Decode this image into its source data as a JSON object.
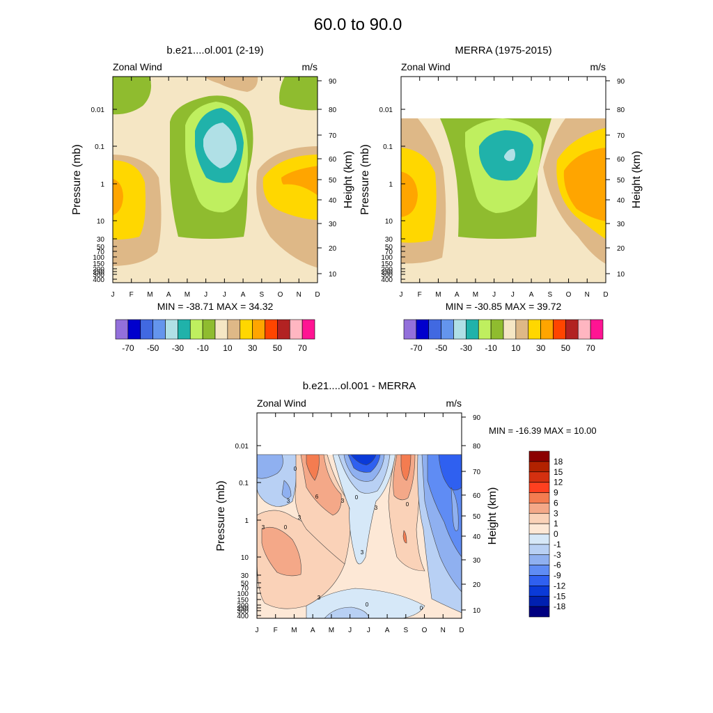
{
  "figure_title": "60.0 to  90.0",
  "months": [
    "J",
    "F",
    "M",
    "A",
    "M",
    "J",
    "J",
    "A",
    "S",
    "O",
    "N",
    "D"
  ],
  "chart_data": [
    {
      "type": "heatmap",
      "id": "model",
      "title": "b.e21....ol.001 (2-19)",
      "variable": "Zonal Wind",
      "units": "m/s",
      "ylabel": "Pressure (mb)",
      "ylabel_right": "Height (km)",
      "pressure_ticks": [
        "0.01",
        "0.1",
        "1",
        "10",
        "30",
        "50",
        "70",
        "100",
        "150",
        "200",
        "250",
        "300",
        "400"
      ],
      "height_ticks": [
        "90",
        "80",
        "70",
        "60",
        "50",
        "40",
        "30",
        "20",
        "10"
      ],
      "stats": "MIN = -38.71  MAX =  34.32",
      "min": -38.71,
      "max": 34.32,
      "colorbar_labels": [
        "-70",
        "-50",
        "-30",
        "-10",
        "10",
        "30",
        "50",
        "70"
      ],
      "colorbar_colors": [
        "#9370db",
        "#0000cd",
        "#4169e1",
        "#6495ed",
        "#b0e0e6",
        "#20b2aa",
        "#bfef5f",
        "#8fbc2f",
        "#f5e6c4",
        "#deb887",
        "#ffd700",
        "#ffa500",
        "#ff4500",
        "#b22222",
        "#ffb6c1",
        "#ff1493"
      ]
    },
    {
      "type": "heatmap",
      "id": "merra",
      "title": "MERRA (1975-2015)",
      "variable": "Zonal Wind",
      "units": "m/s",
      "ylabel": "Pressure (mb)",
      "ylabel_right": "Height (km)",
      "pressure_ticks": [
        "0.01",
        "0.1",
        "1",
        "10",
        "30",
        "50",
        "70",
        "100",
        "150",
        "200",
        "250",
        "300",
        "400"
      ],
      "height_ticks": [
        "90",
        "80",
        "70",
        "60",
        "50",
        "40",
        "30",
        "20",
        "10"
      ],
      "stats": "MIN = -30.85  MAX =  39.72",
      "min": -30.85,
      "max": 39.72,
      "colorbar_labels": [
        "-70",
        "-50",
        "-30",
        "-10",
        "10",
        "30",
        "50",
        "70"
      ],
      "colorbar_colors": [
        "#9370db",
        "#0000cd",
        "#4169e1",
        "#6495ed",
        "#b0e0e6",
        "#20b2aa",
        "#bfef5f",
        "#8fbc2f",
        "#f5e6c4",
        "#deb887",
        "#ffd700",
        "#ffa500",
        "#ff4500",
        "#b22222",
        "#ffb6c1",
        "#ff1493"
      ]
    },
    {
      "type": "heatmap",
      "id": "diff",
      "title": "b.e21....ol.001 - MERRA",
      "variable": "Zonal Wind",
      "units": "m/s",
      "ylabel": "Pressure (mb)",
      "ylabel_right": "Height (km)",
      "pressure_ticks": [
        "0.01",
        "0.1",
        "1",
        "10",
        "30",
        "50",
        "70",
        "100",
        "150",
        "200",
        "250",
        "300",
        "400"
      ],
      "height_ticks": [
        "90",
        "80",
        "70",
        "60",
        "50",
        "40",
        "30",
        "20",
        "10"
      ],
      "stats": "MIN = -16.39  MAX =  10.00",
      "min": -16.39,
      "max": 10.0,
      "contour_labels": [
        "0",
        "3",
        "3",
        "3",
        "6",
        "3",
        "0",
        "0",
        "3",
        "3",
        "3",
        "0",
        "0",
        "0"
      ],
      "colorbar_labels": [
        "18",
        "15",
        "12",
        "9",
        "6",
        "3",
        "1",
        "0",
        "-1",
        "-3",
        "-6",
        "-9",
        "-12",
        "-15",
        "-18"
      ],
      "colorbar_colors": [
        "#8b0000",
        "#b22200",
        "#d43010",
        "#ff4020",
        "#f47c50",
        "#f4a888",
        "#fad2b8",
        "#fde8d6",
        "#d6e8f8",
        "#b8d0f4",
        "#8fb0f0",
        "#5f8cf4",
        "#2f60f0",
        "#0a3ad8",
        "#0020b0",
        "#000080"
      ]
    }
  ]
}
